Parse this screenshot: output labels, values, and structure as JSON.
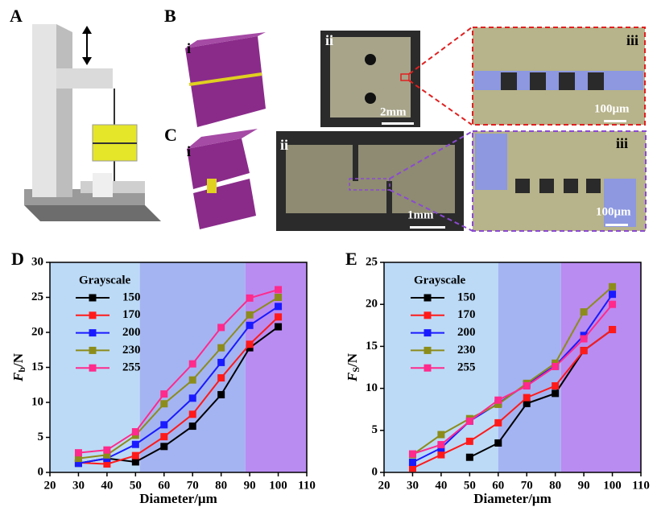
{
  "figure": {
    "panel_labels": [
      "A",
      "B",
      "C"
    ],
    "B": {
      "sublabels": [
        "i",
        "ii",
        "iii"
      ],
      "scale_bars": [
        "2mm",
        "100μm"
      ]
    },
    "C": {
      "sublabels": [
        "i",
        "ii",
        "iii"
      ],
      "scale_bars": [
        "1mm",
        "100μm"
      ]
    }
  },
  "chart_data": [
    {
      "type": "line",
      "panel_label": "D",
      "xlabel": "Diameter/μm",
      "ylabel_symbol": "F",
      "ylabel_subscript": "b",
      "ylabel_unit": "/N",
      "legend_title": "Grayscale",
      "x": [
        30,
        40,
        50,
        60,
        70,
        80,
        90,
        100
      ],
      "xlim": [
        20,
        110
      ],
      "xticks": [
        20,
        30,
        40,
        50,
        60,
        70,
        80,
        90,
        100,
        110
      ],
      "ylim": [
        0,
        30
      ],
      "yticks": [
        0,
        5,
        10,
        15,
        20,
        25,
        30
      ],
      "bands": [
        {
          "from": 20,
          "to": 51.5,
          "color": "#bcdaf6"
        },
        {
          "from": 51.5,
          "to": 88.5,
          "color": "#a4b4f2"
        },
        {
          "from": 88.5,
          "to": 110,
          "color": "#b98cf2"
        }
      ],
      "series": [
        {
          "name": "150",
          "color": "#000000",
          "values": [
            1.3,
            2.0,
            1.5,
            3.7,
            6.6,
            11.1,
            17.8,
            20.8
          ]
        },
        {
          "name": "170",
          "color": "#ff1a1a",
          "values": [
            1.4,
            1.2,
            2.4,
            5.1,
            8.3,
            13.5,
            18.3,
            22.2
          ]
        },
        {
          "name": "200",
          "color": "#1a1aff",
          "values": [
            1.3,
            2.0,
            4.0,
            6.8,
            10.6,
            15.7,
            21.0,
            23.7
          ]
        },
        {
          "name": "230",
          "color": "#8c8c1a",
          "values": [
            2.0,
            2.5,
            5.3,
            9.8,
            13.2,
            17.8,
            22.5,
            25.0
          ]
        },
        {
          "name": "255",
          "color": "#ff2a8c",
          "values": [
            2.8,
            3.2,
            5.8,
            11.2,
            15.5,
            20.7,
            24.9,
            26.1
          ]
        }
      ]
    },
    {
      "type": "line",
      "panel_label": "E",
      "xlabel": "Diameter/μm",
      "ylabel_symbol": "F",
      "ylabel_subscript": "S",
      "ylabel_unit": "/N",
      "legend_title": "Grayscale",
      "x": [
        30,
        40,
        50,
        60,
        70,
        80,
        90,
        100
      ],
      "xlim": [
        20,
        110
      ],
      "xticks": [
        20,
        30,
        40,
        50,
        60,
        70,
        80,
        90,
        100,
        110
      ],
      "ylim": [
        0,
        25
      ],
      "yticks": [
        0,
        5,
        10,
        15,
        20,
        25
      ],
      "bands": [
        {
          "from": 20,
          "to": 60,
          "color": "#bcdaf6"
        },
        {
          "from": 60,
          "to": 82,
          "color": "#a4b4f2"
        },
        {
          "from": 82,
          "to": 110,
          "color": "#b98cf2"
        }
      ],
      "series": [
        {
          "name": "150",
          "color": "#000000",
          "values": [
            null,
            null,
            1.8,
            3.5,
            8.2,
            9.4,
            14.5,
            17.0
          ]
        },
        {
          "name": "170",
          "color": "#ff1a1a",
          "values": [
            0.5,
            2.1,
            3.7,
            5.9,
            8.9,
            10.3,
            14.5,
            17.0
          ]
        },
        {
          "name": "200",
          "color": "#1a1aff",
          "values": [
            1.2,
            2.9,
            6.1,
            8.2,
            10.5,
            12.7,
            16.3,
            21.2
          ]
        },
        {
          "name": "230",
          "color": "#8c8c1a",
          "values": [
            2.1,
            4.5,
            6.4,
            8.1,
            10.6,
            13.0,
            19.1,
            22.1
          ]
        },
        {
          "name": "255",
          "color": "#ff2a8c",
          "values": [
            2.2,
            3.3,
            6.1,
            8.6,
            10.3,
            12.6,
            15.9,
            20.0
          ]
        }
      ]
    }
  ]
}
